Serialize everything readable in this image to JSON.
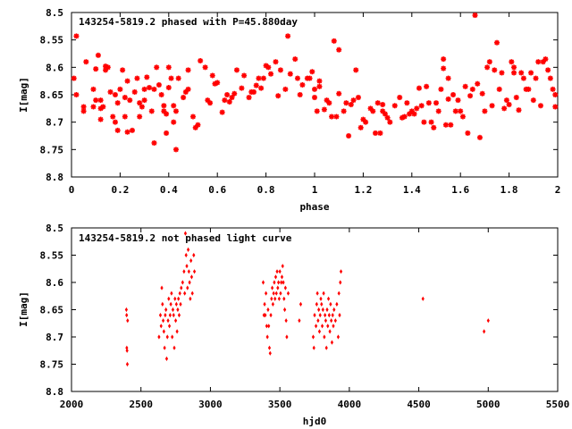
{
  "chart_data": [
    {
      "type": "scatter",
      "title": "143254-5819.2 phased with P=45.880day",
      "xlabel": "phase",
      "ylabel": "I[mag]",
      "xlim": [
        0,
        2
      ],
      "ylim": [
        8.5,
        8.8
      ],
      "y_inverted": true,
      "xticks": [
        "0",
        "0.2",
        "0.4",
        "0.6",
        "0.8",
        "1",
        "1.2",
        "1.4",
        "1.6",
        "1.8",
        "2"
      ],
      "yticks": [
        "8.5",
        "8.55",
        "8.6",
        "8.65",
        "8.7",
        "8.75",
        "8.8"
      ],
      "marker_color": "#ff0000",
      "points": [
        [
          0.01,
          8.62
        ],
        [
          0.02,
          8.65
        ],
        [
          0.02,
          8.543
        ],
        [
          0.05,
          8.672
        ],
        [
          0.05,
          8.68
        ],
        [
          0.06,
          8.59
        ],
        [
          0.09,
          8.672
        ],
        [
          0.09,
          8.64
        ],
        [
          0.1,
          8.603
        ],
        [
          0.1,
          8.66
        ],
        [
          0.11,
          8.578
        ],
        [
          0.12,
          8.66
        ],
        [
          0.12,
          8.675
        ],
        [
          0.12,
          8.695
        ],
        [
          0.13,
          8.672
        ],
        [
          0.14,
          8.605
        ],
        [
          0.14,
          8.598
        ],
        [
          0.15,
          8.6
        ],
        [
          0.16,
          8.645
        ],
        [
          0.17,
          8.69
        ],
        [
          0.18,
          8.65
        ],
        [
          0.18,
          8.7
        ],
        [
          0.19,
          8.665
        ],
        [
          0.19,
          8.715
        ],
        [
          0.2,
          8.64
        ],
        [
          0.21,
          8.605
        ],
        [
          0.22,
          8.655
        ],
        [
          0.22,
          8.69
        ],
        [
          0.23,
          8.625
        ],
        [
          0.23,
          8.718
        ],
        [
          0.24,
          8.66
        ],
        [
          0.25,
          8.715
        ],
        [
          0.26,
          8.645
        ],
        [
          0.27,
          8.62
        ],
        [
          0.28,
          8.665
        ],
        [
          0.28,
          8.69
        ],
        [
          0.29,
          8.672
        ],
        [
          0.3,
          8.64
        ],
        [
          0.3,
          8.66
        ],
        [
          0.31,
          8.618
        ],
        [
          0.32,
          8.637
        ],
        [
          0.33,
          8.68
        ],
        [
          0.34,
          8.738
        ],
        [
          0.34,
          8.64
        ],
        [
          0.35,
          8.6
        ],
        [
          0.36,
          8.632
        ],
        [
          0.37,
          8.65
        ],
        [
          0.38,
          8.67
        ],
        [
          0.38,
          8.68
        ],
        [
          0.39,
          8.72
        ],
        [
          0.39,
          8.685
        ],
        [
          0.4,
          8.6
        ],
        [
          0.4,
          8.637
        ],
        [
          0.41,
          8.62
        ],
        [
          0.42,
          8.7
        ],
        [
          0.42,
          8.67
        ],
        [
          0.43,
          8.68
        ],
        [
          0.43,
          8.75
        ],
        [
          0.44,
          8.62
        ],
        [
          0.46,
          8.655
        ],
        [
          0.47,
          8.645
        ],
        [
          0.48,
          8.64
        ],
        [
          0.48,
          8.605
        ],
        [
          0.5,
          8.69
        ],
        [
          0.51,
          8.71
        ],
        [
          0.52,
          8.705
        ],
        [
          0.53,
          8.588
        ],
        [
          0.55,
          8.6
        ],
        [
          0.56,
          8.66
        ],
        [
          0.57,
          8.665
        ],
        [
          0.58,
          8.615
        ],
        [
          0.59,
          8.63
        ],
        [
          0.6,
          8.628
        ],
        [
          0.62,
          8.682
        ],
        [
          0.63,
          8.66
        ],
        [
          0.64,
          8.65
        ],
        [
          0.65,
          8.663
        ],
        [
          0.66,
          8.655
        ],
        [
          0.67,
          8.648
        ],
        [
          0.68,
          8.605
        ],
        [
          0.7,
          8.638
        ],
        [
          0.71,
          8.615
        ],
        [
          0.73,
          8.655
        ],
        [
          0.74,
          8.645
        ],
        [
          0.75,
          8.645
        ],
        [
          0.76,
          8.633
        ],
        [
          0.77,
          8.62
        ],
        [
          0.78,
          8.638
        ],
        [
          0.79,
          8.62
        ],
        [
          0.8,
          8.597
        ],
        [
          0.81,
          8.6
        ],
        [
          0.82,
          8.612
        ],
        [
          0.84,
          8.59
        ],
        [
          0.85,
          8.652
        ],
        [
          0.86,
          8.605
        ],
        [
          0.88,
          8.64
        ],
        [
          0.89,
          8.543
        ],
        [
          0.9,
          8.612
        ],
        [
          0.92,
          8.585
        ],
        [
          0.93,
          8.62
        ],
        [
          0.94,
          8.65
        ],
        [
          0.95,
          8.632
        ],
        [
          0.97,
          8.62
        ],
        [
          0.98,
          8.62
        ],
        [
          0.99,
          8.608
        ],
        [
          1.0,
          8.655
        ],
        [
          1.0,
          8.64
        ],
        [
          1.01,
          8.68
        ],
        [
          1.02,
          8.625
        ],
        [
          1.02,
          8.635
        ],
        [
          1.04,
          8.677
        ],
        [
          1.05,
          8.66
        ],
        [
          1.06,
          8.665
        ],
        [
          1.07,
          8.69
        ],
        [
          1.08,
          8.552
        ],
        [
          1.09,
          8.69
        ],
        [
          1.1,
          8.648
        ],
        [
          1.1,
          8.568
        ],
        [
          1.12,
          8.68
        ],
        [
          1.13,
          8.665
        ],
        [
          1.14,
          8.725
        ],
        [
          1.15,
          8.668
        ],
        [
          1.16,
          8.66
        ],
        [
          1.17,
          8.605
        ],
        [
          1.18,
          8.655
        ],
        [
          1.19,
          8.71
        ],
        [
          1.2,
          8.695
        ],
        [
          1.21,
          8.7
        ],
        [
          1.23,
          8.675
        ],
        [
          1.24,
          8.68
        ],
        [
          1.25,
          8.72
        ],
        [
          1.26,
          8.665
        ],
        [
          1.27,
          8.72
        ],
        [
          1.28,
          8.68
        ],
        [
          1.28,
          8.668
        ],
        [
          1.29,
          8.685
        ],
        [
          1.3,
          8.692
        ],
        [
          1.31,
          8.7
        ],
        [
          1.33,
          8.67
        ],
        [
          1.35,
          8.655
        ],
        [
          1.36,
          8.692
        ],
        [
          1.37,
          8.69
        ],
        [
          1.38,
          8.665
        ],
        [
          1.39,
          8.685
        ],
        [
          1.4,
          8.68
        ],
        [
          1.41,
          8.685
        ],
        [
          1.42,
          8.675
        ],
        [
          1.43,
          8.638
        ],
        [
          1.44,
          8.67
        ],
        [
          1.45,
          8.7
        ],
        [
          1.46,
          8.635
        ],
        [
          1.47,
          8.665
        ],
        [
          1.48,
          8.7
        ],
        [
          1.49,
          8.71
        ],
        [
          1.5,
          8.665
        ],
        [
          1.51,
          8.68
        ],
        [
          1.52,
          8.64
        ],
        [
          1.53,
          8.602
        ],
        [
          1.53,
          8.585
        ],
        [
          1.54,
          8.705
        ],
        [
          1.55,
          8.62
        ],
        [
          1.55,
          8.658
        ],
        [
          1.56,
          8.705
        ],
        [
          1.57,
          8.65
        ],
        [
          1.58,
          8.68
        ],
        [
          1.59,
          8.66
        ],
        [
          1.6,
          8.68
        ],
        [
          1.61,
          8.69
        ],
        [
          1.62,
          8.635
        ],
        [
          1.63,
          8.72
        ],
        [
          1.64,
          8.652
        ],
        [
          1.65,
          8.64
        ],
        [
          1.66,
          8.505
        ],
        [
          1.67,
          8.63
        ],
        [
          1.68,
          8.728
        ],
        [
          1.69,
          8.648
        ],
        [
          1.7,
          8.68
        ],
        [
          1.71,
          8.6
        ],
        [
          1.72,
          8.59
        ],
        [
          1.73,
          8.67
        ],
        [
          1.74,
          8.605
        ],
        [
          1.75,
          8.555
        ],
        [
          1.76,
          8.64
        ],
        [
          1.77,
          8.61
        ],
        [
          1.78,
          8.675
        ],
        [
          1.79,
          8.66
        ],
        [
          1.8,
          8.668
        ],
        [
          1.81,
          8.59
        ],
        [
          1.82,
          8.6
        ],
        [
          1.82,
          8.61
        ],
        [
          1.83,
          8.655
        ],
        [
          1.84,
          8.678
        ],
        [
          1.85,
          8.61
        ],
        [
          1.86,
          8.62
        ],
        [
          1.87,
          8.64
        ],
        [
          1.88,
          8.64
        ],
        [
          1.89,
          8.61
        ],
        [
          1.9,
          8.66
        ],
        [
          1.91,
          8.62
        ],
        [
          1.92,
          8.59
        ],
        [
          1.93,
          8.67
        ],
        [
          1.94,
          8.59
        ],
        [
          1.95,
          8.585
        ],
        [
          1.96,
          8.605
        ],
        [
          1.97,
          8.62
        ],
        [
          1.98,
          8.64
        ],
        [
          1.99,
          8.65
        ],
        [
          1.99,
          8.672
        ]
      ]
    },
    {
      "type": "scatter",
      "title": "143254-5819.2 not phased light curve",
      "xlabel": "hjd0",
      "ylabel": "I[mag]",
      "xlim": [
        2000,
        5500
      ],
      "ylim": [
        8.5,
        8.8
      ],
      "y_inverted": true,
      "xticks": [
        "2000",
        "2500",
        "3000",
        "3500",
        "4000",
        "4500",
        "5000",
        "5500"
      ],
      "yticks": [
        "8.5",
        "8.55",
        "8.6",
        "8.65",
        "8.7",
        "8.75",
        "8.8"
      ],
      "marker_color": "#ff0000",
      "points": [
        [
          2395,
          8.65
        ],
        [
          2397,
          8.66
        ],
        [
          2398,
          8.72
        ],
        [
          2400,
          8.725
        ],
        [
          2402,
          8.75
        ],
        [
          2404,
          8.67
        ],
        [
          2630,
          8.7
        ],
        [
          2640,
          8.66
        ],
        [
          2645,
          8.68
        ],
        [
          2650,
          8.61
        ],
        [
          2655,
          8.64
        ],
        [
          2660,
          8.67
        ],
        [
          2665,
          8.69
        ],
        [
          2670,
          8.72
        ],
        [
          2675,
          8.66
        ],
        [
          2680,
          8.65
        ],
        [
          2685,
          8.74
        ],
        [
          2690,
          8.7
        ],
        [
          2695,
          8.67
        ],
        [
          2700,
          8.63
        ],
        [
          2705,
          8.68
        ],
        [
          2710,
          8.66
        ],
        [
          2715,
          8.64
        ],
        [
          2720,
          8.62
        ],
        [
          2725,
          8.7
        ],
        [
          2730,
          8.65
        ],
        [
          2735,
          8.66
        ],
        [
          2740,
          8.72
        ],
        [
          2745,
          8.63
        ],
        [
          2750,
          8.67
        ],
        [
          2755,
          8.64
        ],
        [
          2760,
          8.69
        ],
        [
          2765,
          8.65
        ],
        [
          2770,
          8.63
        ],
        [
          2775,
          8.66
        ],
        [
          2780,
          8.62
        ],
        [
          2785,
          8.64
        ],
        [
          2790,
          8.61
        ],
        [
          2800,
          8.6
        ],
        [
          2810,
          8.58
        ],
        [
          2815,
          8.62
        ],
        [
          2820,
          8.51
        ],
        [
          2825,
          8.55
        ],
        [
          2830,
          8.57
        ],
        [
          2835,
          8.61
        ],
        [
          2840,
          8.54
        ],
        [
          2845,
          8.58
        ],
        [
          2850,
          8.6
        ],
        [
          2855,
          8.63
        ],
        [
          2860,
          8.56
        ],
        [
          2865,
          8.59
        ],
        [
          2870,
          8.62
        ],
        [
          2880,
          8.55
        ],
        [
          2885,
          8.58
        ],
        [
          3380,
          8.6
        ],
        [
          3385,
          8.66
        ],
        [
          3390,
          8.64
        ],
        [
          3395,
          8.66
        ],
        [
          3400,
          8.62
        ],
        [
          3405,
          8.68
        ],
        [
          3410,
          8.7
        ],
        [
          3415,
          8.65
        ],
        [
          3420,
          8.68
        ],
        [
          3425,
          8.72
        ],
        [
          3430,
          8.73
        ],
        [
          3435,
          8.66
        ],
        [
          3440,
          8.63
        ],
        [
          3445,
          8.61
        ],
        [
          3450,
          8.64
        ],
        [
          3455,
          8.62
        ],
        [
          3460,
          8.6
        ],
        [
          3465,
          8.63
        ],
        [
          3470,
          8.59
        ],
        [
          3475,
          8.62
        ],
        [
          3480,
          8.58
        ],
        [
          3485,
          8.61
        ],
        [
          3490,
          8.6
        ],
        [
          3495,
          8.63
        ],
        [
          3500,
          8.58
        ],
        [
          3505,
          8.62
        ],
        [
          3510,
          8.6
        ],
        [
          3515,
          8.59
        ],
        [
          3520,
          8.57
        ],
        [
          3525,
          8.6
        ],
        [
          3530,
          8.63
        ],
        [
          3535,
          8.65
        ],
        [
          3540,
          8.61
        ],
        [
          3545,
          8.67
        ],
        [
          3550,
          8.7
        ],
        [
          3560,
          8.62
        ],
        [
          3640,
          8.67
        ],
        [
          3650,
          8.64
        ],
        [
          3740,
          8.7
        ],
        [
          3745,
          8.72
        ],
        [
          3750,
          8.66
        ],
        [
          3760,
          8.68
        ],
        [
          3765,
          8.64
        ],
        [
          3770,
          8.62
        ],
        [
          3775,
          8.67
        ],
        [
          3780,
          8.65
        ],
        [
          3785,
          8.69
        ],
        [
          3790,
          8.66
        ],
        [
          3795,
          8.63
        ],
        [
          3800,
          8.64
        ],
        [
          3805,
          8.68
        ],
        [
          3810,
          8.65
        ],
        [
          3815,
          8.62
        ],
        [
          3820,
          8.7
        ],
        [
          3825,
          8.66
        ],
        [
          3830,
          8.67
        ],
        [
          3835,
          8.72
        ],
        [
          3840,
          8.65
        ],
        [
          3845,
          8.68
        ],
        [
          3850,
          8.63
        ],
        [
          3855,
          8.66
        ],
        [
          3860,
          8.69
        ],
        [
          3865,
          8.64
        ],
        [
          3870,
          8.67
        ],
        [
          3875,
          8.71
        ],
        [
          3880,
          8.66
        ],
        [
          3885,
          8.68
        ],
        [
          3890,
          8.65
        ],
        [
          3900,
          8.67
        ],
        [
          3910,
          8.64
        ],
        [
          3920,
          8.7
        ],
        [
          3925,
          8.62
        ],
        [
          3930,
          8.66
        ],
        [
          3935,
          8.6
        ],
        [
          3940,
          8.58
        ],
        [
          4530,
          8.63
        ],
        [
          4970,
          8.69
        ],
        [
          5000,
          8.67
        ]
      ]
    }
  ]
}
